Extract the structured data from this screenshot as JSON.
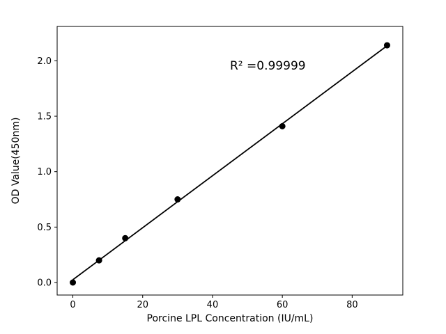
{
  "chart_data": {
    "type": "scatter",
    "x": [
      0,
      7.5,
      15,
      30,
      60,
      90
    ],
    "y": [
      0.0,
      0.2,
      0.4,
      0.75,
      1.41,
      2.14
    ],
    "fit_line": true,
    "annotation": "R² =0.99999",
    "annotation_xy": [
      45,
      1.92
    ],
    "title": "",
    "xlabel": "Porcine LPL Concentration (IU/mL)",
    "ylabel": "OD Value(450nm)",
    "xlim": [
      -4.5,
      94.5
    ],
    "ylim": [
      -0.113,
      2.31
    ],
    "xticks": [
      0,
      20,
      40,
      60,
      80
    ],
    "yticks": [
      0.0,
      0.5,
      1.0,
      1.5,
      2.0
    ],
    "grid": false,
    "legend": null,
    "marker_color": "#000000",
    "line_color": "#000000",
    "background_color": "#ffffff"
  }
}
